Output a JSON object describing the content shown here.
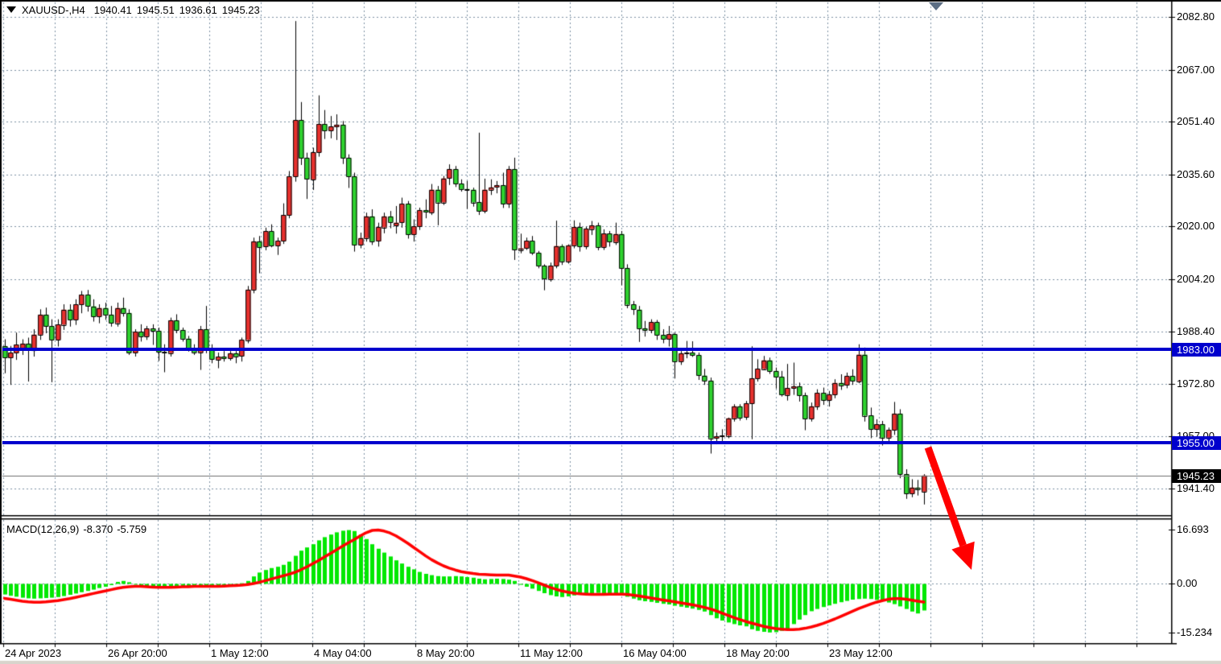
{
  "header": {
    "symbol_period": "XAUUSD-,H4",
    "open": "1940.41",
    "high": "1945.51",
    "low": "1936.61",
    "close": "1945.23"
  },
  "indicator": {
    "label": "MACD(12,26,9)",
    "main_value": "-8.370",
    "signal_value": "-5.759"
  },
  "price_axis": {
    "labels": [
      "2082.80",
      "2067.00",
      "2051.40",
      "2035.60",
      "2020.00",
      "2004.20",
      "1988.40",
      "1972.80",
      "1957.00",
      "1941.40"
    ]
  },
  "macd_axis": {
    "labels": [
      "16.693",
      "0.00",
      "-15.234"
    ]
  },
  "time_axis": {
    "labels": [
      "24 Apr 2023",
      "26 Apr 20:00",
      "1 May 12:00",
      "4 May 04:00",
      "8 May 20:00",
      "11 May 12:00",
      "16 May 04:00",
      "18 May 20:00",
      "23 May 12:00"
    ]
  },
  "hlines": [
    {
      "price": 1983.0,
      "label": "1983.00"
    },
    {
      "price": 1955.0,
      "label": "1955.00"
    }
  ],
  "current_price": {
    "value": 1945.23,
    "label": "1945.23"
  },
  "colors": {
    "bull_candle": "#e8312e",
    "bear_candle": "#2fd32f",
    "candle_border": "#000000",
    "macd_histogram": "#00e800",
    "macd_signal": "#ff0000",
    "hline": "#0000cd",
    "grid": "#7d8fa3",
    "border": "#000000",
    "current_price_line": "#7a7a7a",
    "arrow": "#ff0000",
    "shift_marker": "#5c6e84",
    "tag_text": "#ffffff",
    "bottom_strip": "#d8d4cc"
  },
  "chart_data": {
    "type": "candlestick+macd",
    "symbol": "XAUUSD-",
    "timeframe": "H4",
    "price_axis_ticks": [
      2082.8,
      2067.0,
      2051.4,
      2035.6,
      2020.0,
      2004.2,
      1988.4,
      1972.8,
      1957.0,
      1941.4
    ],
    "macd_axis_ticks": [
      16.693,
      0.0,
      -15.234
    ],
    "time_ticks": [
      "24 Apr 2023",
      "26 Apr 20:00",
      "1 May 12:00",
      "4 May 04:00",
      "8 May 20:00",
      "11 May 12:00",
      "16 May 04:00",
      "18 May 20:00",
      "23 May 12:00"
    ],
    "support_resistance_lines": [
      1983.0,
      1955.0
    ],
    "last_price": 1945.23,
    "grid": true,
    "candles": [
      [
        1984,
        1986,
        1976,
        1980.5
      ],
      [
        1980.5,
        1984,
        1972.5,
        1982
      ],
      [
        1982,
        1988,
        1980,
        1984.5
      ],
      [
        1983,
        1986,
        1981.5,
        1984.8
      ],
      [
        1984.8,
        1986.5,
        1973.5,
        1983
      ],
      [
        1983,
        1989,
        1981,
        1987.5
      ],
      [
        1987.5,
        1995,
        1986,
        1993.5
      ],
      [
        1993.5,
        1995.5,
        1988,
        1990
      ],
      [
        1990,
        1992,
        1973.3,
        1986
      ],
      [
        1986,
        1992,
        1984,
        1990.5
      ],
      [
        1990.5,
        1996.5,
        1989,
        1995
      ],
      [
        1995,
        1996.5,
        1990,
        1992
      ],
      [
        1992,
        1998,
        1990.5,
        1996.5
      ],
      [
        1996.5,
        2000.5,
        1994,
        1999.5
      ],
      [
        1999.5,
        2000.8,
        1994.5,
        1996
      ],
      [
        1996,
        1998,
        1991.5,
        1993
      ],
      [
        1993,
        1996.5,
        1991,
        1995.5
      ],
      [
        1995.5,
        1997,
        1992,
        1993.5
      ],
      [
        1993.5,
        1996,
        1990,
        1991
      ],
      [
        1991,
        1997,
        1990,
        1995.5
      ],
      [
        1995.5,
        1998.5,
        1993,
        1994
      ],
      [
        1994,
        1995,
        1981.5,
        1982.1
      ],
      [
        1982.1,
        1989,
        1981,
        1988.4
      ],
      [
        1988.4,
        1990.5,
        1985.5,
        1987
      ],
      [
        1987,
        1990,
        1986,
        1989.3
      ],
      [
        1989.3,
        1990.5,
        1984.5,
        1988.6
      ],
      [
        1988.6,
        1989.5,
        1979.7,
        1982.3
      ],
      [
        1982.3,
        1984.5,
        1976.3,
        1982
      ],
      [
        1982,
        1992.5,
        1981,
        1991.8
      ],
      [
        1991.8,
        1993.5,
        1988,
        1988.9
      ],
      [
        1988.9,
        1989.5,
        1985.5,
        1986.3
      ],
      [
        1986.3,
        1987,
        1982.5,
        1983.4
      ],
      [
        1983.4,
        1984.5,
        1981.5,
        1982.2
      ],
      [
        1982.2,
        1990,
        1977,
        1989.1
      ],
      [
        1989.1,
        1996,
        1982,
        1983
      ],
      [
        1983,
        1984.5,
        1979,
        1980
      ],
      [
        1980,
        1982,
        1977.5,
        1980.9
      ],
      [
        1980.9,
        1982.5,
        1979.5,
        1980.4
      ],
      [
        1980.4,
        1982.5,
        1979.8,
        1981.9
      ],
      [
        1981.9,
        1982.5,
        1979,
        1981
      ],
      [
        1981,
        1986.5,
        1979.5,
        1985.9
      ],
      [
        1985.9,
        2002,
        1985,
        2001
      ],
      [
        2001,
        2016.5,
        2000,
        2015.5
      ],
      [
        2015.5,
        2017,
        2006,
        2013.8
      ],
      [
        2013.8,
        2019.5,
        2012.9,
        2018.5
      ],
      [
        2018.5,
        2020.5,
        2013.8,
        2014.2
      ],
      [
        2014.2,
        2016.5,
        2011.5,
        2015.6
      ],
      [
        2015.6,
        2026.8,
        2014.8,
        2023.4
      ],
      [
        2023.4,
        2036.5,
        2022.5,
        2034.9
      ],
      [
        2034.9,
        2081.5,
        2033.5,
        2051.9
      ],
      [
        2051.9,
        2057.2,
        2038.5,
        2040.5
      ],
      [
        2040.5,
        2042,
        2028.3,
        2034.1
      ],
      [
        2034.1,
        2043.5,
        2031,
        2042.2
      ],
      [
        2042.2,
        2059.2,
        2041,
        2050.7
      ],
      [
        2050.7,
        2054.8,
        2046.3,
        2048.7
      ],
      [
        2048.7,
        2053,
        2046.5,
        2049.9
      ],
      [
        2049.9,
        2053.5,
        2046,
        2050.5
      ],
      [
        2050.5,
        2051.5,
        2038.8,
        2040.5
      ],
      [
        2040.5,
        2041.5,
        2031.6,
        2035
      ],
      [
        2035,
        2036,
        2012.5,
        2014.5
      ],
      [
        2014.5,
        2018,
        2013.5,
        2016.5
      ],
      [
        2016.5,
        2024,
        2015.5,
        2023
      ],
      [
        2023,
        2025,
        2014.5,
        2015.5
      ],
      [
        2015.5,
        2021,
        2014,
        2019.7
      ],
      [
        2019.7,
        2024,
        2018,
        2023
      ],
      [
        2023,
        2024.5,
        2019.5,
        2021.3
      ],
      [
        2020.3,
        2026,
        2017.9,
        2021.1
      ],
      [
        2021.1,
        2028.5,
        2019.7,
        2026.7
      ],
      [
        2026.7,
        2027.5,
        2016.4,
        2017.6
      ],
      [
        2017.6,
        2022,
        2015.5,
        2020
      ],
      [
        2020,
        2025.5,
        2019,
        2024.8
      ],
      [
        2024.8,
        2028,
        2022.5,
        2024.2
      ],
      [
        2024.2,
        2032.6,
        2023.5,
        2031
      ],
      [
        2031,
        2032,
        2020.4,
        2027.2
      ],
      [
        2027.2,
        2035,
        2026.5,
        2034.4
      ],
      [
        2034.4,
        2038.5,
        2032.5,
        2037.1
      ],
      [
        2037.1,
        2038,
        2031.9,
        2032.8
      ],
      [
        2032.8,
        2034,
        2030.5,
        2031.2
      ],
      [
        2031.2,
        2033.5,
        2025.3,
        2031
      ],
      [
        2031,
        2031.5,
        2026,
        2027.2
      ],
      [
        2027.2,
        2048,
        2023.5,
        2024.6
      ],
      [
        2024.6,
        2034.2,
        2024,
        2031
      ],
      [
        2031,
        2034,
        2029.5,
        2031.7
      ],
      [
        2031.7,
        2033.5,
        2030,
        2032.3
      ],
      [
        2032.3,
        2036,
        2025.6,
        2026.8
      ],
      [
        2026.8,
        2038,
        2025.6,
        2037.1
      ],
      [
        2037.1,
        2040.5,
        2010,
        2013
      ],
      [
        2013,
        2017.7,
        2012,
        2013.4
      ],
      [
        2013.4,
        2016.5,
        2013,
        2015.6
      ],
      [
        2015.6,
        2017,
        2011.5,
        2012
      ],
      [
        2012,
        2012.5,
        2007.5,
        2008.1
      ],
      [
        2008.1,
        2008.5,
        2000.9,
        2004.2
      ],
      [
        2004.2,
        2009,
        2003.5,
        2008.2
      ],
      [
        2008.2,
        2021.6,
        2007.5,
        2014.1
      ],
      [
        2014.1,
        2014.5,
        2008.5,
        2009.5
      ],
      [
        2009.5,
        2014.5,
        2008.9,
        2014.3
      ],
      [
        2014.3,
        2021.7,
        2013.5,
        2019.8
      ],
      [
        2019.8,
        2021,
        2012.5,
        2014
      ],
      [
        2014,
        2019.8,
        2013.2,
        2019.2
      ],
      [
        2019.2,
        2021.5,
        2017.5,
        2020.3
      ],
      [
        2020.3,
        2021,
        2012.9,
        2013.8
      ],
      [
        2013.8,
        2019,
        2013,
        2017.8
      ],
      [
        2017.8,
        2018.5,
        2014,
        2015.3
      ],
      [
        2015.3,
        2021,
        2014.5,
        2017.7
      ],
      [
        2017.7,
        2018.5,
        2002.4,
        2007.5
      ],
      [
        2007.5,
        2008.5,
        1995.5,
        1996.5
      ],
      [
        1996.5,
        1997.5,
        1993.5,
        1995
      ],
      [
        1995,
        1996,
        1985.4,
        1989.4
      ],
      [
        1989.4,
        1991.5,
        1987,
        1988.8
      ],
      [
        1988.8,
        1992,
        1988,
        1991.2
      ],
      [
        1991.2,
        1991.8,
        1986,
        1987.4
      ],
      [
        1987.4,
        1989,
        1985,
        1986.2
      ],
      [
        1986.2,
        1990,
        1984,
        1987.6
      ],
      [
        1987.6,
        1988,
        1974.4,
        1979.5
      ],
      [
        1979.5,
        1982.5,
        1978.5,
        1981.9
      ],
      [
        1981.9,
        1985.5,
        1980.5,
        1982
      ],
      [
        1982,
        1985.4,
        1980.9,
        1981.3
      ],
      [
        1981.3,
        1982,
        1974,
        1975.2
      ],
      [
        1975.2,
        1977.1,
        1972.5,
        1973.7
      ],
      [
        1973.7,
        1974.5,
        1951.9,
        1956.4
      ],
      [
        1956.4,
        1958,
        1954.8,
        1956.9
      ],
      [
        1956.9,
        1959,
        1955.5,
        1957.2
      ],
      [
        1957.2,
        1962.5,
        1956.5,
        1962.4
      ],
      [
        1962.4,
        1966.5,
        1961.5,
        1966
      ],
      [
        1966,
        1966.5,
        1961.8,
        1962.6
      ],
      [
        1962.6,
        1967.5,
        1962,
        1966.8
      ],
      [
        1966.8,
        1983.9,
        1956.2,
        1974.4
      ],
      [
        1974.4,
        1980,
        1973.5,
        1977.2
      ],
      [
        1977.2,
        1981,
        1977,
        1979.8
      ],
      [
        1979.8,
        1980.5,
        1975.8,
        1976.6
      ],
      [
        1976.6,
        1977.5,
        1971.4,
        1974.8
      ],
      [
        1974.8,
        1976.5,
        1969,
        1969.4
      ],
      [
        1969.4,
        1978.6,
        1967.8,
        1971.5
      ],
      [
        1971.5,
        1979,
        1969.5,
        1972
      ],
      [
        1972,
        1973,
        1967.5,
        1969.3
      ],
      [
        1969.3,
        1970,
        1958.9,
        1962.3
      ],
      [
        1962.3,
        1967,
        1961.5,
        1966
      ],
      [
        1966,
        1971,
        1965,
        1970
      ],
      [
        1970,
        1971.5,
        1966.5,
        1967.8
      ],
      [
        1967.8,
        1970.5,
        1966,
        1969.5
      ],
      [
        1969.5,
        1974,
        1968.5,
        1973
      ],
      [
        1973,
        1975.5,
        1971,
        1972.3
      ],
      [
        1972.3,
        1976,
        1971.5,
        1975
      ],
      [
        1975,
        1977,
        1972.5,
        1973.5
      ],
      [
        1973.5,
        1984.5,
        1973,
        1981.5
      ],
      [
        1981.5,
        1983.5,
        1961.5,
        1963.2
      ],
      [
        1963.2,
        1965.5,
        1956.5,
        1959.2
      ],
      [
        1959.2,
        1962,
        1957,
        1960.6
      ],
      [
        1960.6,
        1961.5,
        1954.3,
        1956.6
      ],
      [
        1956.6,
        1959.5,
        1955,
        1958.9
      ],
      [
        1958.9,
        1967.2,
        1957.5,
        1963.8
      ],
      [
        1963.8,
        1965,
        1944.5,
        1945.6
      ],
      [
        1945.6,
        1947,
        1938.3,
        1939.8
      ],
      [
        1939.8,
        1944,
        1938.8,
        1941.6
      ],
      [
        1941.6,
        1943.8,
        1939.3,
        1941.2
      ],
      [
        1940.41,
        1945.51,
        1936.61,
        1945.23
      ]
    ],
    "macd": {
      "histogram": [
        -3.4,
        -3.8,
        -4.1,
        -4.4,
        -4.6,
        -4.7,
        -4.6,
        -4.5,
        -4.4,
        -4.2,
        -3.9,
        -3.5,
        -3.1,
        -2.7,
        -2.3,
        -1.9,
        -1.4,
        -1.0,
        -0.5,
        0.5,
        0.8,
        0.4,
        -0.2,
        -0.8,
        -1.2,
        -1.4,
        -1.5,
        -1.4,
        -1.1,
        -0.9,
        -0.8,
        -0.8,
        -0.9,
        -1.0,
        -1.1,
        -1.0,
        -0.8,
        -0.6,
        -0.4,
        -0.2,
        0.1,
        0.8,
        2.2,
        3.4,
        4.2,
        4.8,
        5.2,
        5.8,
        6.8,
        8.6,
        10.2,
        11.2,
        12.2,
        13.4,
        14.4,
        15.2,
        15.9,
        16.4,
        16.6,
        16.3,
        15.2,
        13.8,
        12.2,
        10.8,
        9.6,
        8.4,
        7.2,
        6.2,
        5.2,
        4.4,
        3.6,
        3.0,
        2.6,
        2.3,
        2.2,
        2.2,
        2.3,
        2.2,
        2.0,
        1.8,
        1.5,
        1.3,
        1.4,
        1.5,
        1.4,
        1.2,
        0.8,
        -0.4,
        -1.0,
        -1.6,
        -2.3,
        -3.0,
        -3.6,
        -4.0,
        -4.2,
        -4.0,
        -3.7,
        -3.4,
        -3.1,
        -3.0,
        -2.9,
        -3.0,
        -3.1,
        -3.3,
        -3.6,
        -4.1,
        -4.7,
        -5.2,
        -5.5,
        -5.7,
        -6.0,
        -6.3,
        -6.5,
        -6.9,
        -7.2,
        -7.5,
        -7.8,
        -8.2,
        -8.7,
        -9.8,
        -10.8,
        -11.5,
        -12.1,
        -12.6,
        -13.0,
        -13.3,
        -14.2,
        -14.7,
        -15.0,
        -15.2,
        -15.1,
        -14.7,
        -14.1,
        -12.6,
        -11.2,
        -9.8,
        -8.6,
        -7.9,
        -7.3,
        -6.8,
        -6.3,
        -5.8,
        -5.4,
        -5.0,
        -4.8,
        -4.7,
        -4.8,
        -5.1,
        -5.5,
        -5.9,
        -6.4,
        -7.1,
        -7.9,
        -8.7,
        -9.3,
        -8.37
      ],
      "signal": [
        -4.6,
        -4.9,
        -5.2,
        -5.5,
        -5.7,
        -5.8,
        -5.8,
        -5.7,
        -5.5,
        -5.3,
        -5.0,
        -4.7,
        -4.3,
        -3.9,
        -3.5,
        -3.1,
        -2.7,
        -2.3,
        -1.9,
        -1.5,
        -1.2,
        -1.0,
        -0.9,
        -0.9,
        -1.0,
        -1.1,
        -1.2,
        -1.2,
        -1.2,
        -1.1,
        -1.0,
        -1.0,
        -0.9,
        -0.9,
        -0.9,
        -0.9,
        -0.9,
        -0.8,
        -0.7,
        -0.6,
        -0.5,
        -0.3,
        0.0,
        0.4,
        0.9,
        1.4,
        1.9,
        2.4,
        2.9,
        3.5,
        4.3,
        5.2,
        6.2,
        7.2,
        8.3,
        9.4,
        10.5,
        11.6,
        12.7,
        13.7,
        14.8,
        15.8,
        16.5,
        16.6,
        16.3,
        15.7,
        14.8,
        13.7,
        12.5,
        11.2,
        9.9,
        8.6,
        7.4,
        6.4,
        5.5,
        4.8,
        4.2,
        3.7,
        3.4,
        3.1,
        2.9,
        2.8,
        2.7,
        2.6,
        2.6,
        2.6,
        2.3,
        2.0,
        1.5,
        0.9,
        0.2,
        -0.5,
        -1.2,
        -1.8,
        -2.3,
        -2.7,
        -3.0,
        -3.2,
        -3.3,
        -3.4,
        -3.4,
        -3.4,
        -3.3,
        -3.3,
        -3.3,
        -3.4,
        -3.6,
        -3.9,
        -4.2,
        -4.5,
        -4.8,
        -5.1,
        -5.4,
        -5.7,
        -6.0,
        -6.3,
        -6.6,
        -7.0,
        -7.4,
        -7.9,
        -8.5,
        -9.2,
        -9.9,
        -10.6,
        -11.2,
        -11.8,
        -12.3,
        -12.8,
        -13.3,
        -13.7,
        -14.0,
        -14.2,
        -14.3,
        -14.3,
        -14.2,
        -13.9,
        -13.5,
        -13.0,
        -12.4,
        -11.7,
        -11.0,
        -10.2,
        -9.4,
        -8.6,
        -7.8,
        -7.1,
        -6.4,
        -5.8,
        -5.3,
        -4.9,
        -4.7,
        -4.7,
        -4.9,
        -5.2,
        -5.5,
        -5.76
      ]
    },
    "annotations": {
      "arrow": {
        "direction": "down-right",
        "from_price": 1954.5,
        "to_macd_area": true,
        "color": "#ff0000"
      }
    }
  }
}
